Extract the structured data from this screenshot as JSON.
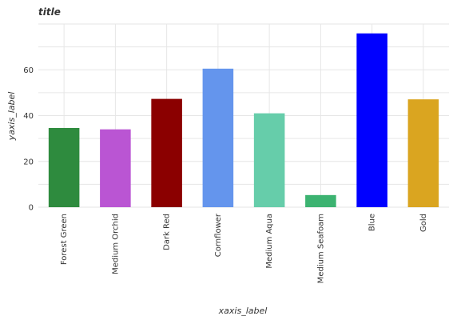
{
  "chart_data": {
    "type": "bar",
    "title": "title",
    "xlabel": "xaxis_label",
    "ylabel": "yaxis_label",
    "categories": [
      "Forest Green",
      "Medium Orchid",
      "Dark Red",
      "Cornflower",
      "Medium Aqua",
      "Medium Seafoam",
      "Blue",
      "Gold"
    ],
    "values": [
      34.6,
      34.0,
      47.3,
      60.5,
      41.0,
      5.3,
      75.9,
      47.1
    ],
    "colors": [
      "#2e8b3e",
      "#ba55d3",
      "#8b0000",
      "#6495ed",
      "#66cdaa",
      "#3cb371",
      "#0000ff",
      "#daa520"
    ],
    "ylim": [
      0,
      80
    ],
    "yticks": [
      0,
      20,
      40,
      60
    ],
    "grid": true,
    "legend": "none"
  }
}
